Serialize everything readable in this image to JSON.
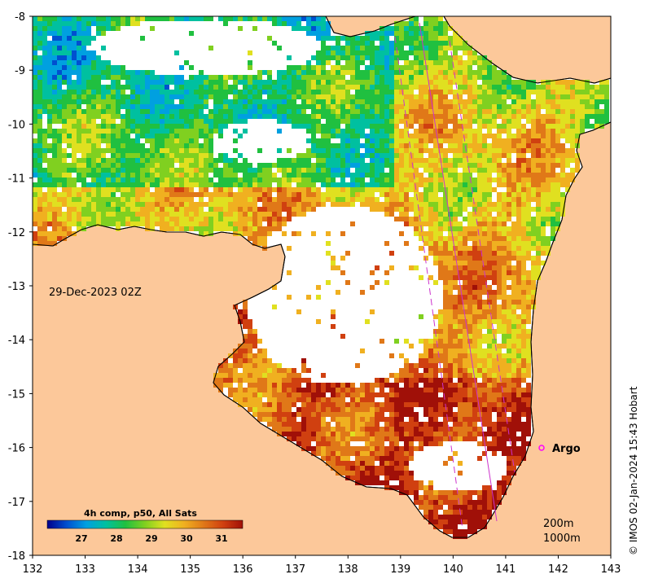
{
  "map": {
    "date_label": "29-Dec-2023 02Z",
    "float_label": "Argo",
    "depth_labels": [
      "200m",
      "1000m"
    ],
    "credit": "© IMOS 02-Jan-2024 15:43 Hobart",
    "x_ticks": [
      "132",
      "133",
      "134",
      "135",
      "136",
      "137",
      "138",
      "139",
      "140",
      "141",
      "142",
      "143"
    ],
    "y_ticks": [
      "-8",
      "-9",
      "-10",
      "-11",
      "-12",
      "-13",
      "-14",
      "-15",
      "-16",
      "-17",
      "-18"
    ],
    "colorbar": {
      "title": "4h comp, p50, All Sats",
      "ticks": [
        "27",
        "28",
        "29",
        "30",
        "31"
      ]
    },
    "colors": {
      "land": "#fcc89a",
      "no_data": "#ffffff",
      "coast": "#000000",
      "argo_marker": "#ff00ff",
      "swath": "#cc33cc"
    },
    "palette": [
      "#00008b",
      "#0050d0",
      "#00a0e0",
      "#00c0a0",
      "#20c040",
      "#80d020",
      "#e0e020",
      "#f0b020",
      "#e07818",
      "#d04010",
      "#a01008"
    ]
  }
}
